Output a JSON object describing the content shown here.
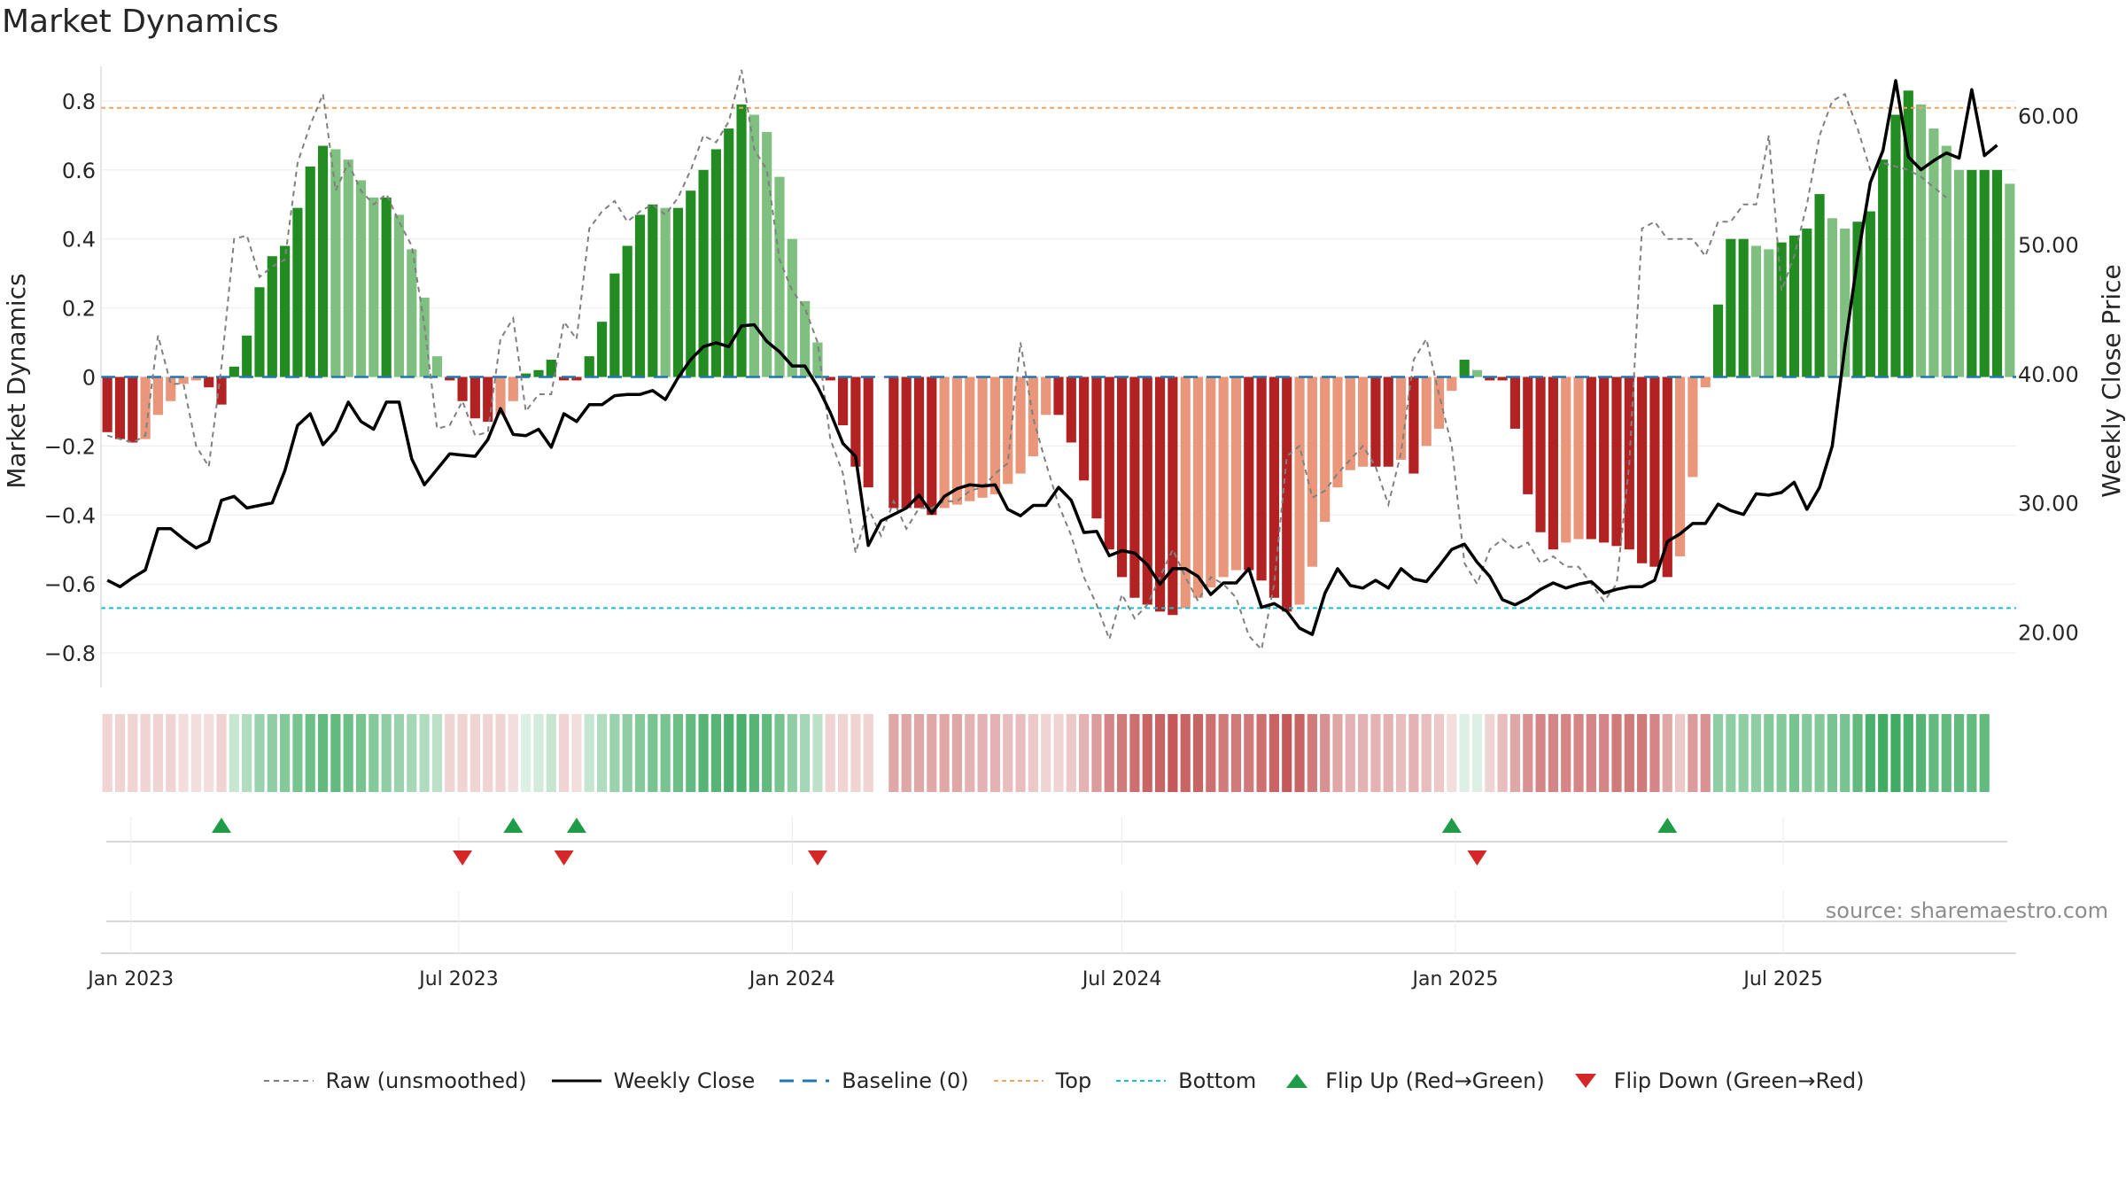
{
  "chart_data": {
    "type": "bar",
    "title": "Market Dynamics",
    "source": "source: sharemaestro.com",
    "x_ticks": [
      "Jan 2023",
      "Jul 2023",
      "Jan 2024",
      "Jul 2024",
      "Jan 2025",
      "Jul 2025"
    ],
    "y_left": {
      "label": "Market Dynamics",
      "range": [
        -0.9,
        0.9
      ],
      "ticks": [
        "0.8",
        "0.6",
        "0.4",
        "0.2",
        "0",
        "−0.2",
        "−0.4",
        "−0.6",
        "−0.8"
      ],
      "tick_values": [
        0.8,
        0.6,
        0.4,
        0.2,
        0,
        -0.2,
        -0.4,
        -0.6,
        -0.8
      ]
    },
    "y_right": {
      "label": "Weekly Close Price",
      "range": [
        15.7,
        63.8
      ],
      "ticks": [
        "60.00",
        "50.00",
        "40.00",
        "30.00",
        "20.00"
      ],
      "tick_values": [
        60,
        50,
        40,
        30,
        20
      ]
    },
    "top_level": 0.78,
    "bottom_level": -0.67,
    "baseline": 0,
    "weeks_start": "2022-12-19",
    "bar_values": [
      -0.16,
      -0.18,
      -0.19,
      -0.18,
      -0.11,
      -0.07,
      -0.02,
      -0.01,
      -0.03,
      -0.08,
      0.03,
      0.12,
      0.26,
      0.35,
      0.38,
      0.49,
      0.61,
      0.67,
      0.66,
      0.63,
      0.57,
      0.52,
      0.52,
      0.47,
      0.37,
      0.23,
      0.06,
      -0.01,
      -0.07,
      -0.12,
      -0.13,
      -0.11,
      -0.07,
      0.01,
      0.02,
      0.05,
      -0.01,
      -0.01,
      0.06,
      0.16,
      0.3,
      0.38,
      0.47,
      0.5,
      0.49,
      0.49,
      0.54,
      0.6,
      0.66,
      0.72,
      0.79,
      0.76,
      0.71,
      0.58,
      0.4,
      0.22,
      0.1,
      -0.01,
      -0.14,
      -0.26,
      -0.32,
      null,
      -0.38,
      -0.38,
      -0.38,
      -0.4,
      -0.38,
      -0.37,
      -0.36,
      -0.35,
      -0.34,
      -0.31,
      -0.28,
      -0.23,
      -0.11,
      -0.11,
      -0.19,
      -0.3,
      -0.41,
      -0.5,
      -0.58,
      -0.64,
      -0.66,
      -0.68,
      -0.69,
      -0.67,
      -0.64,
      -0.61,
      -0.58,
      -0.56,
      -0.56,
      -0.59,
      -0.64,
      -0.68,
      -0.66,
      -0.55,
      -0.42,
      -0.32,
      -0.27,
      -0.26,
      -0.26,
      -0.26,
      -0.24,
      -0.28,
      -0.2,
      -0.15,
      -0.04,
      0.05,
      0.02,
      -0.01,
      -0.01,
      -0.15,
      -0.34,
      -0.45,
      -0.5,
      -0.48,
      -0.47,
      -0.47,
      -0.48,
      -0.49,
      -0.5,
      -0.54,
      -0.55,
      -0.58,
      -0.52,
      -0.29,
      -0.03,
      0.21,
      0.4,
      0.4,
      0.38,
      0.37,
      0.39,
      0.41,
      0.43,
      0.53,
      0.46,
      0.43,
      0.45,
      0.48,
      0.63,
      0.76,
      0.83,
      0.79,
      0.72,
      0.67,
      0.6,
      0.6,
      0.6,
      0.6,
      0.56
    ],
    "raw_values": [
      -0.17,
      -0.18,
      -0.19,
      -0.17,
      0.12,
      -0.02,
      -0.02,
      -0.2,
      -0.26,
      0.03,
      0.4,
      0.41,
      0.29,
      0.32,
      0.34,
      0.62,
      0.73,
      0.82,
      0.54,
      0.62,
      0.54,
      0.5,
      0.53,
      0.45,
      0.38,
      0.15,
      -0.15,
      -0.14,
      -0.07,
      -0.17,
      -0.16,
      0.11,
      0.17,
      -0.1,
      -0.05,
      -0.05,
      0.16,
      0.11,
      0.43,
      0.48,
      0.51,
      0.45,
      0.48,
      0.5,
      0.47,
      0.52,
      0.6,
      0.7,
      0.68,
      0.74,
      0.89,
      0.66,
      0.6,
      0.34,
      0.25,
      0.2,
      0.1,
      -0.18,
      -0.28,
      -0.51,
      -0.38,
      -0.46,
      -0.36,
      -0.44,
      -0.38,
      -0.38,
      -0.36,
      -0.36,
      -0.33,
      -0.32,
      -0.28,
      -0.25,
      0.1,
      -0.12,
      -0.25,
      -0.37,
      -0.46,
      -0.58,
      -0.66,
      -0.76,
      -0.63,
      -0.7,
      -0.66,
      -0.58,
      -0.5,
      -0.58,
      -0.65,
      -0.58,
      -0.6,
      -0.64,
      -0.75,
      -0.79,
      -0.6,
      -0.23,
      -0.2,
      -0.35,
      -0.33,
      -0.28,
      -0.24,
      -0.2,
      -0.26,
      -0.37,
      -0.22,
      0.05,
      0.11,
      -0.05,
      -0.2,
      -0.54,
      -0.6,
      -0.5,
      -0.47,
      -0.5,
      -0.48,
      -0.54,
      -0.52,
      -0.55,
      -0.55,
      -0.6,
      -0.65,
      -0.6,
      -0.25,
      0.43,
      0.45,
      0.4,
      0.4,
      0.4,
      0.35,
      0.45,
      0.45,
      0.5,
      0.5,
      0.7,
      0.25,
      0.35,
      0.5,
      0.7,
      0.8,
      0.82,
      0.72,
      0.6,
      0.62,
      0.61,
      0.6,
      0.58,
      0.55,
      0.52
    ],
    "close_values": [
      24.0,
      23.5,
      24.2,
      24.8,
      28.0,
      28.0,
      27.2,
      26.5,
      27.0,
      30.2,
      30.5,
      29.6,
      29.8,
      30.0,
      32.5,
      36.0,
      36.9,
      34.5,
      35.6,
      37.8,
      36.3,
      35.7,
      37.8,
      37.8,
      33.4,
      31.4,
      32.6,
      33.8,
      33.7,
      33.6,
      34.9,
      37.3,
      35.3,
      35.2,
      35.7,
      34.3,
      36.9,
      36.3,
      37.6,
      37.6,
      38.3,
      38.4,
      38.4,
      38.7,
      38.0,
      39.7,
      41.1,
      42.1,
      42.4,
      42.1,
      43.7,
      43.8,
      42.5,
      41.7,
      40.6,
      40.6,
      39.0,
      37.0,
      34.6,
      33.6,
      26.7,
      28.6,
      29.1,
      29.6,
      30.6,
      29.2,
      30.5,
      31.1,
      31.4,
      31.3,
      31.4,
      29.5,
      29.0,
      29.8,
      29.8,
      31.2,
      30.2,
      27.7,
      27.8,
      25.9,
      26.3,
      26.1,
      25.2,
      23.7,
      24.9,
      24.9,
      24.3,
      22.9,
      23.8,
      23.8,
      24.9,
      21.9,
      22.2,
      21.6,
      20.3,
      19.8,
      23.0,
      24.9,
      23.6,
      23.4,
      24.0,
      23.4,
      24.9,
      24.1,
      23.9,
      25.1,
      26.4,
      26.8,
      25.4,
      24.3,
      22.5,
      22.1,
      22.6,
      23.3,
      23.8,
      23.4,
      23.7,
      23.9,
      23.0,
      23.3,
      23.5,
      23.5,
      24.0,
      27.0,
      27.6,
      28.4,
      28.4,
      29.9,
      29.4,
      29.1,
      30.7,
      30.6,
      30.8,
      31.6,
      29.5,
      31.2,
      34.4,
      42.1,
      48.9,
      54.8,
      57.3,
      62.7,
      56.8,
      55.8,
      56.5,
      57.1,
      56.7,
      62.0,
      56.9,
      57.7
    ],
    "regime_shades": [
      0.2,
      0.2,
      0.2,
      0.2,
      0.2,
      0.2,
      0.15,
      0.15,
      0.15,
      0.2,
      0.25,
      0.35,
      0.45,
      0.5,
      0.55,
      0.6,
      0.65,
      0.7,
      0.7,
      0.65,
      0.6,
      0.55,
      0.5,
      0.45,
      0.4,
      0.35,
      0.3,
      0.2,
      0.2,
      0.2,
      0.2,
      0.2,
      0.15,
      0.15,
      0.2,
      0.25,
      0.2,
      0.15,
      0.25,
      0.35,
      0.45,
      0.5,
      0.55,
      0.6,
      0.6,
      0.65,
      0.7,
      0.75,
      0.75,
      0.8,
      0.8,
      0.75,
      0.7,
      0.6,
      0.5,
      0.4,
      0.3,
      0.2,
      0.2,
      0.2,
      0.2,
      null,
      0.4,
      0.4,
      0.4,
      0.4,
      0.4,
      0.4,
      0.35,
      0.35,
      0.35,
      0.3,
      0.3,
      0.25,
      0.2,
      0.2,
      0.25,
      0.35,
      0.45,
      0.55,
      0.6,
      0.65,
      0.7,
      0.7,
      0.75,
      0.7,
      0.7,
      0.65,
      0.6,
      0.6,
      0.6,
      0.65,
      0.7,
      0.75,
      0.7,
      0.6,
      0.5,
      0.4,
      0.35,
      0.35,
      0.35,
      0.35,
      0.3,
      0.35,
      0.3,
      0.25,
      0.15,
      0.15,
      0.15,
      0.2,
      0.3,
      0.4,
      0.5,
      0.55,
      0.55,
      0.55,
      0.55,
      0.55,
      0.55,
      0.6,
      0.6,
      0.6,
      0.55,
      0.4,
      0.25,
      0.45,
      0.5,
      0.5,
      0.5,
      0.5,
      0.5,
      0.55,
      0.55,
      0.6,
      0.55,
      0.55,
      0.6,
      0.6,
      0.7,
      0.8,
      0.85,
      0.85,
      0.8,
      0.75,
      0.7,
      0.7,
      0.7,
      0.7,
      0.7
    ],
    "flip_up_weeks": [
      9,
      32,
      37,
      106,
      123
    ],
    "flip_down_weeks": [
      28,
      36,
      56,
      108
    ],
    "legend": {
      "raw": "Raw (unsmoothed)",
      "close": "Weekly Close",
      "baseline": "Baseline (0)",
      "top": "Top",
      "bottom": "Bottom",
      "flip_up": "Flip Up (Red→Green)",
      "flip_down": "Flip Down (Green→Red)"
    },
    "colors": {
      "green_strong": "#228b22",
      "green_weak": "#7fbf7f",
      "red_strong": "#b22222",
      "red_weak": "#e9967a",
      "raw_line": "#808080",
      "close_line": "#000000",
      "baseline": "#1f77b4",
      "top": "#f4a460",
      "bottom": "#17becf",
      "flip_up": "#1e9c48",
      "flip_down": "#d62728"
    }
  }
}
